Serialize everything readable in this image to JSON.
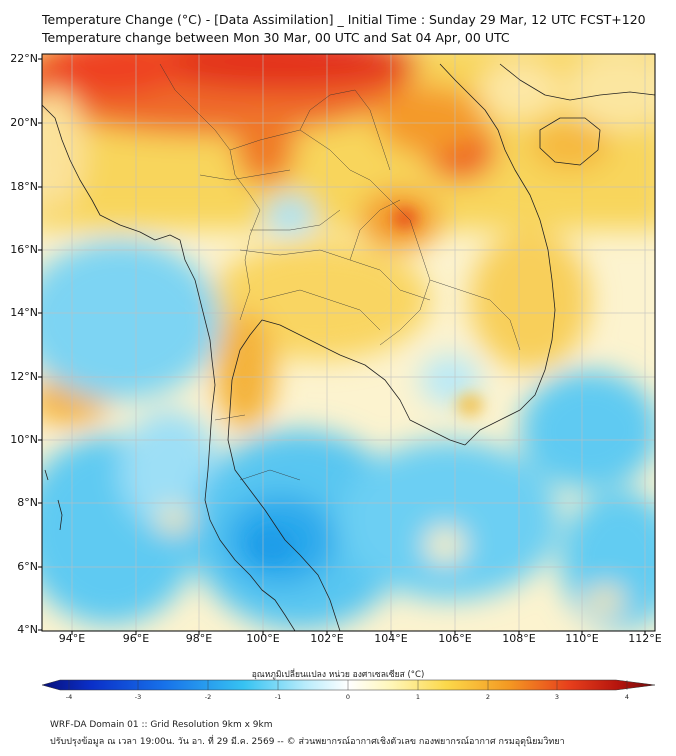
{
  "header": {
    "title": "Temperature Change (°C) - [Data Assimilation] _ Initial Time : Sunday 29 Mar, 12 UTC FCST+120",
    "subtitle": "Temperature change between Mon 30 Mar, 00 UTC and Sat 04 Apr, 00 UTC"
  },
  "axes": {
    "lat_labels": [
      "22°N",
      "20°N",
      "18°N",
      "16°N",
      "14°N",
      "12°N",
      "10°N",
      "8°N",
      "6°N",
      "4°N"
    ],
    "lon_labels": [
      "94°E",
      "96°E",
      "98°E",
      "100°E",
      "102°E",
      "104°E",
      "106°E",
      "108°E",
      "110°E",
      "112°E"
    ]
  },
  "colorbar": {
    "title": "อุณหภูมิเปลี่ยนแปลง หน่วย องศาเซลเซียส (°C)",
    "ticks": [
      "-4",
      "-3",
      "-2",
      "-1",
      "0",
      "1",
      "2",
      "3",
      "4"
    ],
    "min": -4,
    "max": 4
  },
  "footer": {
    "line1": "WRF-DA Domain 01 :: Grid Resolution 9km x 9km",
    "line2": "ปรับปรุงข้อมูล ณ เวลา 19:00น. วัน อา. ที่ 29 มี.ค. 2569 -- © ส่วนพยากรณ์อากาศเชิงตัวเลข กองพยากรณ์อากาศ กรมอุตุนิยมวิทยา"
  },
  "colors": {
    "cold": "#2fb4ee",
    "neutral": "#fffbe6",
    "warm": "#f4c63a",
    "hot": "#e8321e"
  }
}
